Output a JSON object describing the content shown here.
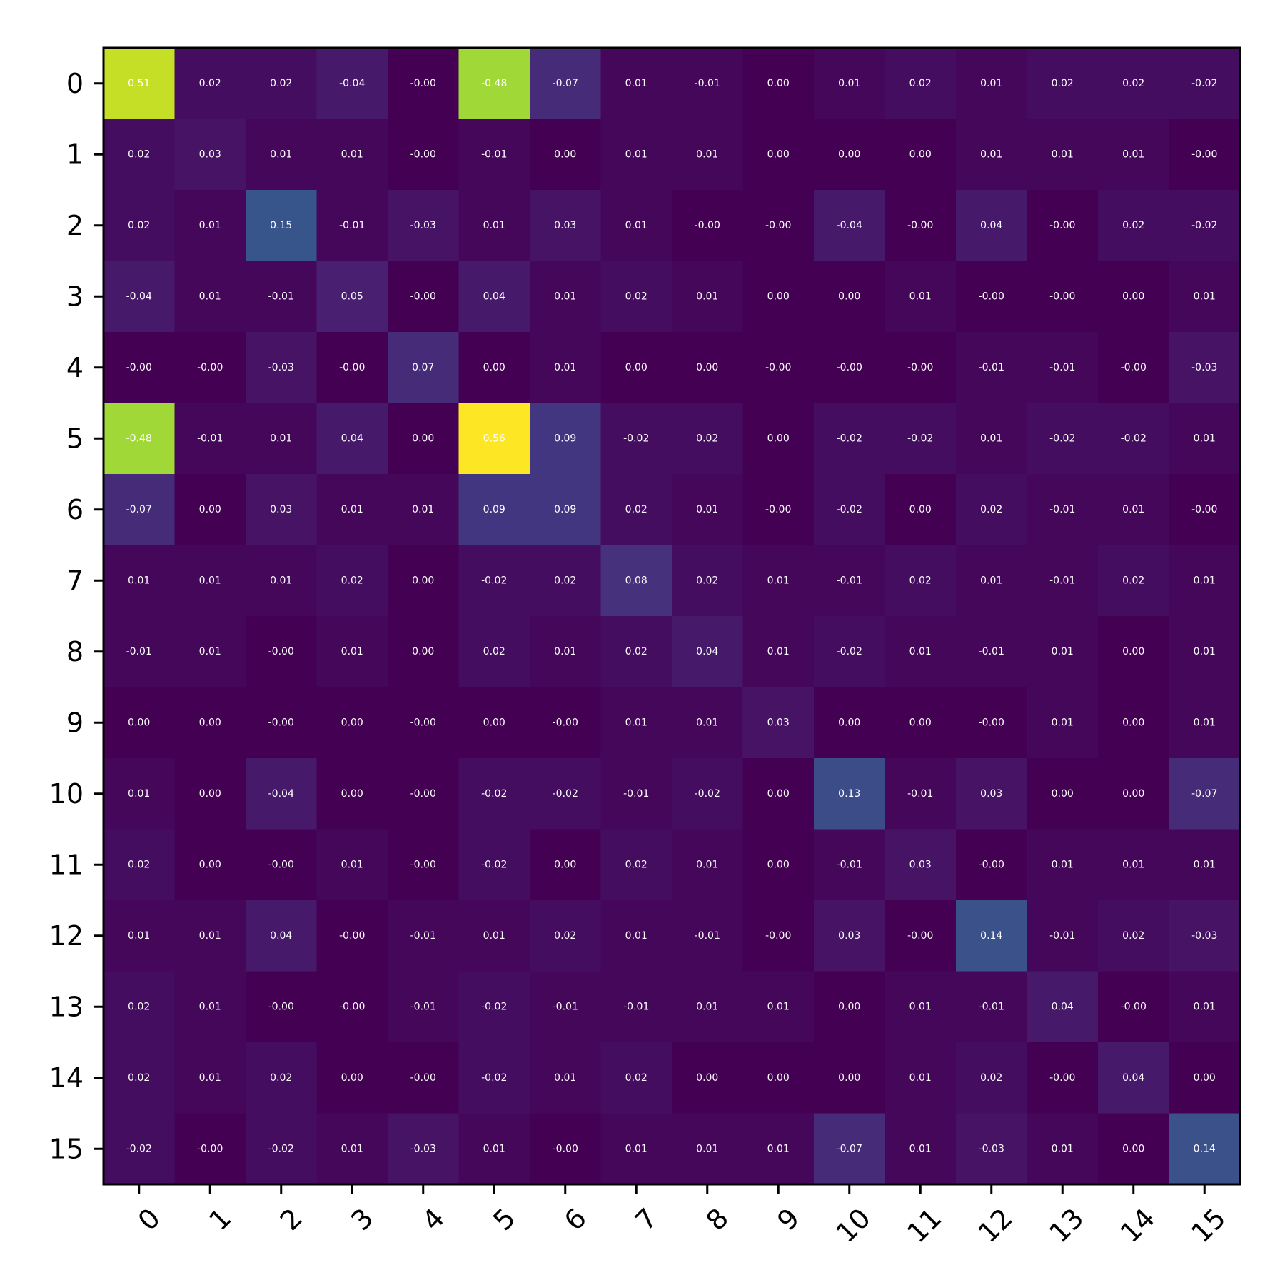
{
  "chart_data": {
    "type": "heatmap",
    "colormap": "viridis",
    "vmin": -0.48,
    "vmax": 0.56,
    "value_format": "2 decimals",
    "x_ticks": [
      "0",
      "1",
      "2",
      "3",
      "4",
      "5",
      "6",
      "7",
      "8",
      "9",
      "10",
      "11",
      "12",
      "13",
      "14",
      "15"
    ],
    "y_ticks": [
      "0",
      "1",
      "2",
      "3",
      "4",
      "5",
      "6",
      "7",
      "8",
      "9",
      "10",
      "11",
      "12",
      "13",
      "14",
      "15"
    ],
    "values": [
      [
        0.51,
        0.02,
        0.02,
        -0.04,
        -0.0,
        -0.48,
        -0.07,
        0.01,
        -0.01,
        0.0,
        0.01,
        0.02,
        0.01,
        0.02,
        0.02,
        -0.02
      ],
      [
        0.02,
        0.03,
        0.01,
        0.01,
        -0.0,
        -0.01,
        0.0,
        0.01,
        0.01,
        0.0,
        0.0,
        0.0,
        0.01,
        0.01,
        0.01,
        -0.0
      ],
      [
        0.02,
        0.01,
        0.15,
        -0.01,
        -0.03,
        0.01,
        0.03,
        0.01,
        -0.0,
        -0.0,
        -0.04,
        -0.0,
        0.04,
        -0.0,
        0.02,
        -0.02
      ],
      [
        -0.04,
        0.01,
        -0.01,
        0.05,
        -0.0,
        0.04,
        0.01,
        0.02,
        0.01,
        0.0,
        0.0,
        0.01,
        -0.0,
        -0.0,
        0.0,
        0.01
      ],
      [
        -0.0,
        -0.0,
        -0.03,
        -0.0,
        0.07,
        0.0,
        0.01,
        0.0,
        0.0,
        -0.0,
        -0.0,
        -0.0,
        -0.01,
        -0.01,
        -0.0,
        -0.03
      ],
      [
        -0.48,
        -0.01,
        0.01,
        0.04,
        0.0,
        0.56,
        0.09,
        -0.02,
        0.02,
        0.0,
        -0.02,
        -0.02,
        0.01,
        -0.02,
        -0.02,
        0.01
      ],
      [
        -0.07,
        0.0,
        0.03,
        0.01,
        0.01,
        0.09,
        0.09,
        0.02,
        0.01,
        -0.0,
        -0.02,
        0.0,
        0.02,
        -0.01,
        0.01,
        -0.0
      ],
      [
        0.01,
        0.01,
        0.01,
        0.02,
        0.0,
        -0.02,
        0.02,
        0.08,
        0.02,
        0.01,
        -0.01,
        0.02,
        0.01,
        -0.01,
        0.02,
        0.01
      ],
      [
        -0.01,
        0.01,
        -0.0,
        0.01,
        0.0,
        0.02,
        0.01,
        0.02,
        0.04,
        0.01,
        -0.02,
        0.01,
        -0.01,
        0.01,
        0.0,
        0.01
      ],
      [
        0.0,
        0.0,
        -0.0,
        0.0,
        -0.0,
        0.0,
        -0.0,
        0.01,
        0.01,
        0.03,
        0.0,
        0.0,
        -0.0,
        0.01,
        0.0,
        0.01
      ],
      [
        0.01,
        0.0,
        -0.04,
        0.0,
        -0.0,
        -0.02,
        -0.02,
        -0.01,
        -0.02,
        0.0,
        0.13,
        -0.01,
        0.03,
        0.0,
        0.0,
        -0.07
      ],
      [
        0.02,
        0.0,
        -0.0,
        0.01,
        -0.0,
        -0.02,
        0.0,
        0.02,
        0.01,
        0.0,
        -0.01,
        0.03,
        -0.0,
        0.01,
        0.01,
        0.01
      ],
      [
        0.01,
        0.01,
        0.04,
        -0.0,
        -0.01,
        0.01,
        0.02,
        0.01,
        -0.01,
        -0.0,
        0.03,
        -0.0,
        0.14,
        -0.01,
        0.02,
        -0.03
      ],
      [
        0.02,
        0.01,
        -0.0,
        -0.0,
        -0.01,
        -0.02,
        -0.01,
        -0.01,
        0.01,
        0.01,
        0.0,
        0.01,
        -0.01,
        0.04,
        -0.0,
        0.01
      ],
      [
        0.02,
        0.01,
        0.02,
        0.0,
        -0.0,
        -0.02,
        0.01,
        0.02,
        0.0,
        0.0,
        0.0,
        0.01,
        0.02,
        -0.0,
        0.04,
        0.0
      ],
      [
        -0.02,
        -0.0,
        -0.02,
        0.01,
        -0.03,
        0.01,
        -0.0,
        0.01,
        0.01,
        0.01,
        -0.07,
        0.01,
        -0.03,
        0.01,
        0.0,
        0.14
      ]
    ]
  }
}
